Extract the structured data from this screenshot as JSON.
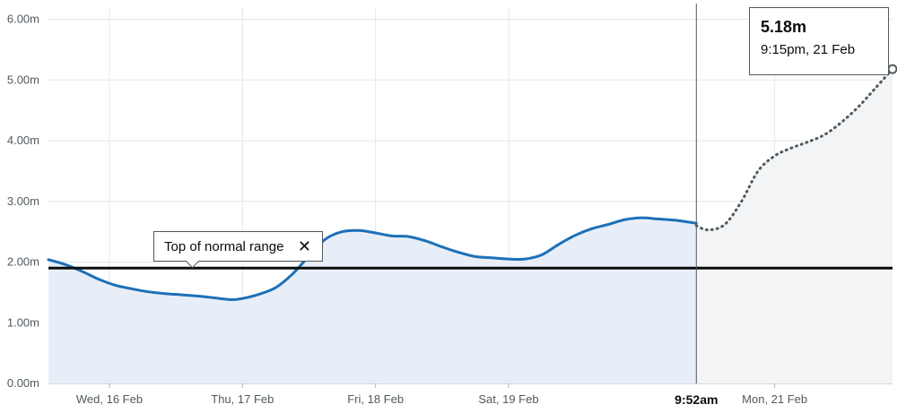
{
  "chart_data": {
    "type": "line",
    "y_unit": "m",
    "ylim": [
      0,
      6.2
    ],
    "y_ticks": [
      {
        "value": 0,
        "label": "0.00m"
      },
      {
        "value": 1,
        "label": "1.00m"
      },
      {
        "value": 2,
        "label": "2.00m"
      },
      {
        "value": 3,
        "label": "3.00m"
      },
      {
        "value": 4,
        "label": "4.00m"
      },
      {
        "value": 5,
        "label": "5.00m"
      },
      {
        "value": 6,
        "label": "6.00m"
      }
    ],
    "x_range": [
      "2022-02-15T13:00",
      "2022-02-21T21:15"
    ],
    "x_ticks": [
      {
        "time": "2022-02-16T00:00",
        "label": "Wed, 16 Feb"
      },
      {
        "time": "2022-02-17T00:00",
        "label": "Thu, 17 Feb"
      },
      {
        "time": "2022-02-18T00:00",
        "label": "Fri, 18 Feb"
      },
      {
        "time": "2022-02-19T00:00",
        "label": "Sat, 19 Feb"
      },
      {
        "time": "2022-02-21T00:00",
        "label": "Mon, 21 Feb"
      }
    ],
    "now": {
      "time": "2022-02-20T09:52",
      "label": "9:52am"
    },
    "threshold": {
      "value": 1.9,
      "label": "Top of normal range",
      "close_symbol": "✕"
    },
    "tooltip": {
      "value": "5.18m",
      "time": "9:15pm, 21 Feb"
    },
    "grid": true,
    "series": [
      {
        "style": "observed",
        "color": "#1d70b8",
        "points": [
          [
            "2022-02-15T13:00",
            2.04
          ],
          [
            "2022-02-15T16:00",
            1.96
          ],
          [
            "2022-02-15T19:00",
            1.85
          ],
          [
            "2022-02-15T22:00",
            1.72
          ],
          [
            "2022-02-16T01:00",
            1.62
          ],
          [
            "2022-02-16T04:00",
            1.56
          ],
          [
            "2022-02-16T07:00",
            1.51
          ],
          [
            "2022-02-16T10:00",
            1.48
          ],
          [
            "2022-02-16T13:00",
            1.46
          ],
          [
            "2022-02-16T16:00",
            1.44
          ],
          [
            "2022-02-16T19:00",
            1.41
          ],
          [
            "2022-02-16T22:00",
            1.38
          ],
          [
            "2022-02-17T00:00",
            1.4
          ],
          [
            "2022-02-17T03:00",
            1.47
          ],
          [
            "2022-02-17T06:00",
            1.58
          ],
          [
            "2022-02-17T09:00",
            1.8
          ],
          [
            "2022-02-17T12:00",
            2.1
          ],
          [
            "2022-02-17T15:00",
            2.38
          ],
          [
            "2022-02-17T18:00",
            2.5
          ],
          [
            "2022-02-17T21:00",
            2.52
          ],
          [
            "2022-02-18T00:00",
            2.48
          ],
          [
            "2022-02-18T03:00",
            2.43
          ],
          [
            "2022-02-18T06:00",
            2.42
          ],
          [
            "2022-02-18T09:00",
            2.35
          ],
          [
            "2022-02-18T12:00",
            2.25
          ],
          [
            "2022-02-18T15:00",
            2.16
          ],
          [
            "2022-02-18T18:00",
            2.09
          ],
          [
            "2022-02-18T21:00",
            2.07
          ],
          [
            "2022-02-19T00:00",
            2.05
          ],
          [
            "2022-02-19T03:00",
            2.05
          ],
          [
            "2022-02-19T06:00",
            2.12
          ],
          [
            "2022-02-19T09:00",
            2.29
          ],
          [
            "2022-02-19T12:00",
            2.44
          ],
          [
            "2022-02-19T15:00",
            2.55
          ],
          [
            "2022-02-19T18:00",
            2.62
          ],
          [
            "2022-02-19T21:00",
            2.7
          ],
          [
            "2022-02-20T00:00",
            2.73
          ],
          [
            "2022-02-20T03:00",
            2.71
          ],
          [
            "2022-02-20T06:00",
            2.69
          ],
          [
            "2022-02-20T09:52",
            2.64
          ]
        ]
      },
      {
        "style": "forecast",
        "color": "#505a5f",
        "points": [
          [
            "2022-02-20T09:52",
            2.6
          ],
          [
            "2022-02-20T12:00",
            2.53
          ],
          [
            "2022-02-20T15:00",
            2.62
          ],
          [
            "2022-02-20T18:00",
            3.0
          ],
          [
            "2022-02-20T21:00",
            3.5
          ],
          [
            "2022-02-21T00:00",
            3.75
          ],
          [
            "2022-02-21T03:00",
            3.88
          ],
          [
            "2022-02-21T06:00",
            3.98
          ],
          [
            "2022-02-21T09:00",
            4.1
          ],
          [
            "2022-02-21T12:00",
            4.3
          ],
          [
            "2022-02-21T15:00",
            4.55
          ],
          [
            "2022-02-21T18:00",
            4.85
          ],
          [
            "2022-02-21T21:15",
            5.18
          ]
        ]
      }
    ]
  }
}
